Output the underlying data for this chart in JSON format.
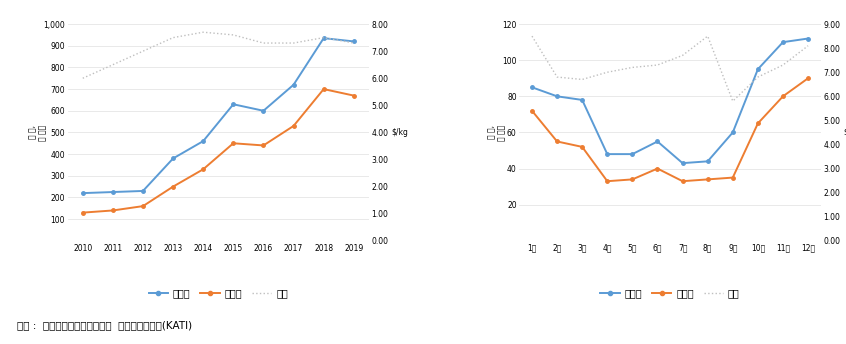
{
  "left": {
    "x": [
      2010,
      2011,
      2012,
      2013,
      2014,
      2015,
      2016,
      2017,
      2018,
      2019
    ],
    "x_labels": [
      "2010",
      "2011",
      "2012",
      "2013",
      "2014",
      "2015",
      "2016",
      "2017",
      "2018",
      "2019"
    ],
    "blue": [
      220,
      225,
      230,
      380,
      460,
      630,
      600,
      720,
      935,
      920
    ],
    "orange": [
      130,
      140,
      160,
      250,
      330,
      450,
      440,
      530,
      700,
      670
    ],
    "dotted": [
      6.0,
      6.5,
      7.0,
      7.5,
      7.7,
      7.6,
      7.3,
      7.3,
      7.5,
      7.3
    ],
    "ylim_left": [
      0,
      1000
    ],
    "ylim_right": [
      0.0,
      8.0
    ],
    "yticks_left": [
      100,
      200,
      300,
      400,
      500,
      600,
      700,
      800,
      900,
      1000
    ],
    "yticks_right": [
      0.0,
      1.0,
      2.0,
      3.0,
      4.0,
      5.0,
      6.0,
      7.0,
      8.0
    ],
    "ylabel_left": "천 톤,\n억 달러",
    "ylabel_right": "$/kg"
  },
  "right": {
    "x": [
      1,
      2,
      3,
      4,
      5,
      6,
      7,
      8,
      9,
      10,
      11,
      12
    ],
    "x_labels": [
      "1월",
      "2월",
      "3월",
      "4월",
      "5월",
      "6월",
      "7월",
      "8월",
      "9월",
      "10월",
      "11월",
      "12월"
    ],
    "blue": [
      85,
      80,
      78,
      48,
      48,
      55,
      43,
      44,
      60,
      95,
      110,
      112
    ],
    "orange": [
      72,
      55,
      52,
      33,
      34,
      40,
      33,
      34,
      35,
      65,
      80,
      90
    ],
    "dotted": [
      8.5,
      6.8,
      6.7,
      7.0,
      7.2,
      7.3,
      7.7,
      8.5,
      5.8,
      6.8,
      7.3,
      8.1
    ],
    "ylim_left": [
      0,
      120
    ],
    "ylim_right": [
      0.0,
      9.0
    ],
    "yticks_left": [
      20,
      40,
      60,
      80,
      100,
      120
    ],
    "yticks_right": [
      0.0,
      1.0,
      2.0,
      3.0,
      4.0,
      5.0,
      6.0,
      7.0,
      8.0,
      9.0
    ],
    "ylabel_left": "천 톤,\n억 달러",
    "ylabel_right": "$/kg"
  },
  "legend_labels": [
    "수입량",
    "수입액",
    "단가"
  ],
  "source_text": "출체 :  한국농수산식품유통공사  농식품수출정보(KATI)",
  "blue_color": "#5B9BD5",
  "orange_color": "#ED7D31",
  "dotted_color": "#BFBFBF",
  "background_color": "#FFFFFF",
  "grid_color": "#E0E0E0"
}
